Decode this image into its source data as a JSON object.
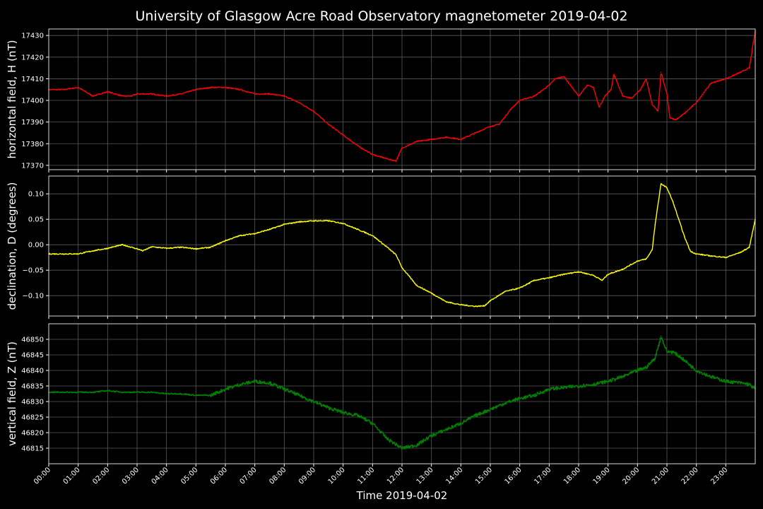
{
  "title": "University of Glasgow Acre Road Observatory magnetometer 2019-04-02",
  "colors": {
    "background": "#000000",
    "grid": "#5a5a5a",
    "text": "#ffffff"
  },
  "chart_data": [
    {
      "type": "line",
      "ylabel": "horizontal field, H (nT)",
      "color": "#ff0000",
      "ylim": [
        17368,
        17433
      ],
      "yticks": [
        "17370",
        "17380",
        "17390",
        "17400",
        "17410",
        "17420",
        "17430"
      ],
      "xlim": [
        0,
        24
      ],
      "x_unit": "hours",
      "grid": true,
      "series": [
        {
          "x": [
            0,
            0.5,
            1,
            1.5,
            2,
            2.5,
            2.8,
            3,
            3.5,
            4,
            4.5,
            5,
            5.5,
            6,
            6.5,
            7,
            7.5,
            8,
            8.5,
            9,
            9.5,
            10,
            10.5,
            11,
            11.5,
            11.8,
            12,
            12.5,
            13,
            13.5,
            14,
            14.5,
            15,
            15.3,
            15.7,
            16,
            16.5,
            17,
            17.2,
            17.5,
            18,
            18.3,
            18.5,
            18.7,
            18.9,
            19.1,
            19.2,
            19.5,
            19.8,
            20.1,
            20.3,
            20.5,
            20.7,
            20.8,
            21,
            21.1,
            21.3,
            21.6,
            22,
            22.5,
            23,
            23.5,
            23.8,
            24
          ],
          "values": [
            17405,
            17405,
            17406,
            17402,
            17404,
            17402,
            17402,
            17403,
            17403,
            17402,
            17403,
            17405,
            17406,
            17406,
            17405,
            17403,
            17403,
            17402,
            17399,
            17395,
            17389,
            17384,
            17379,
            17375,
            17373,
            17372,
            17378,
            17381,
            17382,
            17383,
            17382,
            17385,
            17388,
            17389,
            17396,
            17400,
            17402,
            17407,
            17410,
            17411,
            17402,
            17407,
            17406,
            17397,
            17402,
            17405,
            17412,
            17402,
            17401,
            17405,
            17410,
            17398,
            17395,
            17413,
            17403,
            17392,
            17391,
            17394,
            17399,
            17408,
            17410,
            17413,
            17415,
            17432
          ]
        }
      ]
    },
    {
      "type": "line",
      "ylabel": "declination, D (degrees)",
      "color": "#ffff00",
      "ylim": [
        -0.14,
        0.135
      ],
      "yticks": [
        "−0.10",
        "−0.05",
        "0.00",
        "0.05",
        "0.10"
      ],
      "xlim": [
        0,
        24
      ],
      "x_unit": "hours",
      "grid": true,
      "series": [
        {
          "x": [
            0,
            0.5,
            1,
            1.5,
            2,
            2.5,
            3,
            3.2,
            3.5,
            4,
            4.5,
            5,
            5.5,
            6,
            6.5,
            7,
            7.5,
            8,
            8.5,
            9,
            9.5,
            10,
            10.5,
            11,
            11.5,
            11.8,
            12,
            12.5,
            13,
            13.5,
            14,
            14.5,
            14.8,
            15,
            15.5,
            16,
            16.5,
            17,
            17.5,
            18,
            18.5,
            18.8,
            19,
            19.5,
            20,
            20.3,
            20.5,
            20.6,
            20.8,
            21,
            21.2,
            21.4,
            21.6,
            21.8,
            22,
            22.5,
            23,
            23.5,
            23.8,
            24
          ],
          "values": [
            -0.018,
            -0.018,
            -0.018,
            -0.012,
            -0.007,
            0.0,
            -0.008,
            -0.012,
            -0.004,
            -0.007,
            -0.005,
            -0.008,
            -0.005,
            0.008,
            0.018,
            0.022,
            0.03,
            0.04,
            0.045,
            0.047,
            0.047,
            0.042,
            0.03,
            0.018,
            -0.005,
            -0.02,
            -0.045,
            -0.08,
            -0.095,
            -0.112,
            -0.118,
            -0.121,
            -0.12,
            -0.11,
            -0.092,
            -0.085,
            -0.07,
            -0.065,
            -0.058,
            -0.053,
            -0.06,
            -0.07,
            -0.058,
            -0.048,
            -0.032,
            -0.028,
            -0.01,
            0.04,
            0.12,
            0.112,
            0.085,
            0.05,
            0.015,
            -0.013,
            -0.018,
            -0.022,
            -0.025,
            -0.015,
            -0.005,
            0.05
          ]
        }
      ]
    },
    {
      "type": "line",
      "ylabel": "vertical field, Z (nT)",
      "color": "#008000",
      "ylim": [
        46810,
        46855
      ],
      "yticks": [
        "46815",
        "46820",
        "46825",
        "46830",
        "46835",
        "46840",
        "46845",
        "46850"
      ],
      "xlim": [
        0,
        24
      ],
      "x_unit": "hours",
      "grid": true,
      "series": [
        {
          "x": [
            0,
            0.5,
            1,
            1.5,
            2,
            2.5,
            3,
            3.5,
            4,
            4.5,
            5,
            5.5,
            6,
            6.5,
            7,
            7.5,
            8,
            8.5,
            9,
            9.5,
            10,
            10.5,
            11,
            11.5,
            12,
            12.5,
            13,
            13.5,
            14,
            14.5,
            15,
            15.5,
            16,
            16.5,
            17,
            17.5,
            18,
            18.5,
            19,
            19.5,
            20,
            20.3,
            20.6,
            20.8,
            21,
            21.2,
            21.5,
            22,
            22.5,
            23,
            23.5,
            23.8,
            24
          ],
          "values": [
            46833,
            46833,
            46833,
            46833,
            46833.5,
            46833,
            46833,
            46833,
            46832.5,
            46832.5,
            46832,
            46832,
            46834,
            46835.5,
            46836.5,
            46836,
            46834,
            46832,
            46830,
            46828,
            46826.5,
            46825.5,
            46823,
            46818,
            46815,
            46816,
            46819,
            46821,
            46823,
            46825.5,
            46827.5,
            46829.5,
            46831,
            46832,
            46834,
            46834.5,
            46835,
            46835.5,
            46836.5,
            46838,
            46840,
            46841,
            46844,
            46851,
            46846,
            46846,
            46844,
            46840,
            46838,
            46836.5,
            46836,
            46835.5,
            46834
          ]
        }
      ]
    }
  ],
  "xaxis": {
    "label": "Time 2019-04-02",
    "ticks": [
      "00:00",
      "01:00",
      "02:00",
      "03:00",
      "04:00",
      "05:00",
      "06:00",
      "07:00",
      "08:00",
      "09:00",
      "10:00",
      "11:00",
      "12:00",
      "13:00",
      "14:00",
      "15:00",
      "16:00",
      "17:00",
      "18:00",
      "19:00",
      "20:00",
      "21:00",
      "22:00",
      "23:00"
    ]
  }
}
